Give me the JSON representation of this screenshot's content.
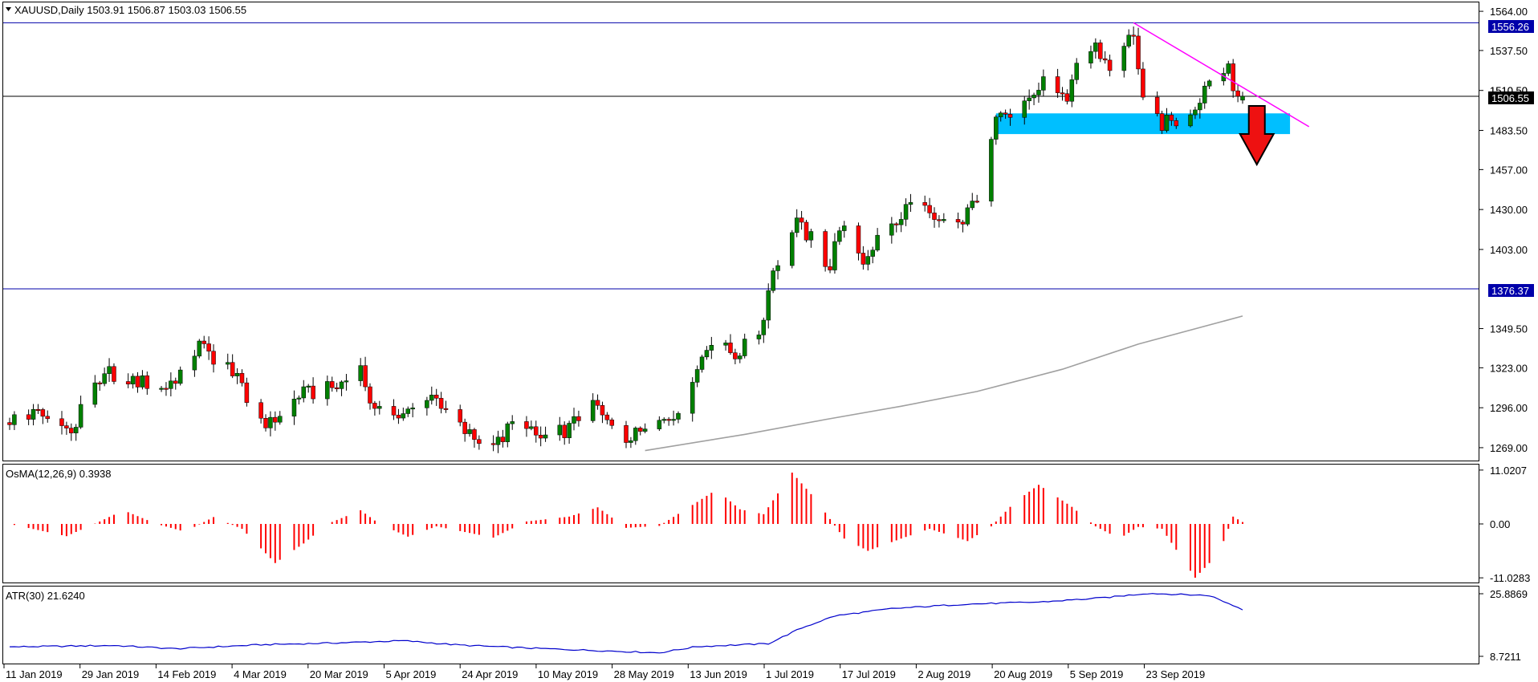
{
  "header": {
    "symbol_line": "XAUUSD,Daily  1503.91 1506.87 1503.03 1506.55",
    "osma_label": "OsMA(12,26,9) 0.3938",
    "atr_label": "ATR(30) 21.6240"
  },
  "price_axis": {
    "ticks": [
      "1564.00",
      "1537.50",
      "1510.50",
      "1483.50",
      "1457.00",
      "1430.00",
      "1403.00",
      "1376.37",
      "1349.50",
      "1323.00",
      "1296.00",
      "1269.00"
    ],
    "current_price": "1506.55",
    "resistance_label": "1556.26",
    "support_label": "1376.37",
    "hidden_label": "1510.50"
  },
  "osma_axis": {
    "ticks": [
      "11.0207",
      "0.00",
      "-11.0283"
    ]
  },
  "atr_axis": {
    "ticks": [
      "25.8869",
      "8.7211"
    ]
  },
  "time_axis": {
    "labels": [
      "11 Jan 2019",
      "29 Jan 2019",
      "14 Feb 2019",
      "4 Mar 2019",
      "20 Mar 2019",
      "5 Apr 2019",
      "24 Apr 2019",
      "10 May 2019",
      "28 May 2019",
      "13 Jun 2019",
      "1 Jul 2019",
      "17 Jul 2019",
      "2 Aug 2019",
      "20 Aug 2019",
      "5 Sep 2019",
      "23 Sep 2019"
    ]
  },
  "colors": {
    "bull": "#008000",
    "bear": "#ff0000",
    "osma": "#ff0000",
    "atr": "#0000cc",
    "ma": "#a0a0a0",
    "trendline": "#ff00ff",
    "zone": "#00bfff",
    "hline": "#0000aa",
    "arrow": "#ee1111"
  },
  "chart_data": {
    "type": "candlestick",
    "symbol": "XAUUSD",
    "timeframe": "Daily",
    "last_bar": {
      "open": 1503.91,
      "high": 1506.87,
      "low": 1503.03,
      "close": 1506.55
    },
    "date_range": [
      "2019-01-10",
      "2019-09-27"
    ],
    "price_range": [
      1255,
      1570
    ],
    "close_path": [
      {
        "date": "2019-01-10",
        "close": 1288
      },
      {
        "date": "2019-01-16",
        "close": 1292
      },
      {
        "date": "2019-01-22",
        "close": 1281
      },
      {
        "date": "2019-01-24",
        "close": 1279
      },
      {
        "date": "2019-01-25",
        "close": 1300
      },
      {
        "date": "2019-01-29",
        "close": 1310
      },
      {
        "date": "2019-01-31",
        "close": 1320
      },
      {
        "date": "2019-02-04",
        "close": 1315
      },
      {
        "date": "2019-02-12",
        "close": 1310
      },
      {
        "date": "2019-02-15",
        "close": 1320
      },
      {
        "date": "2019-02-19",
        "close": 1338
      },
      {
        "date": "2019-02-22",
        "close": 1330
      },
      {
        "date": "2019-02-27",
        "close": 1320
      },
      {
        "date": "2019-03-01",
        "close": 1295
      },
      {
        "date": "2019-03-06",
        "close": 1285
      },
      {
        "date": "2019-03-08",
        "close": 1292
      },
      {
        "date": "2019-03-12",
        "close": 1305
      },
      {
        "date": "2019-03-15",
        "close": 1306
      },
      {
        "date": "2019-03-20",
        "close": 1310
      },
      {
        "date": "2019-03-25",
        "close": 1322
      },
      {
        "date": "2019-03-28",
        "close": 1292
      },
      {
        "date": "2019-04-03",
        "close": 1290
      },
      {
        "date": "2019-04-10",
        "close": 1306
      },
      {
        "date": "2019-04-12",
        "close": 1290
      },
      {
        "date": "2019-04-18",
        "close": 1275
      },
      {
        "date": "2019-04-23",
        "close": 1272
      },
      {
        "date": "2019-04-26",
        "close": 1285
      },
      {
        "date": "2019-05-02",
        "close": 1275
      },
      {
        "date": "2019-05-08",
        "close": 1282
      },
      {
        "date": "2019-05-13",
        "close": 1300
      },
      {
        "date": "2019-05-16",
        "close": 1285
      },
      {
        "date": "2019-05-21",
        "close": 1275
      },
      {
        "date": "2019-05-24",
        "close": 1284
      },
      {
        "date": "2019-05-30",
        "close": 1290
      },
      {
        "date": "2019-06-04",
        "close": 1325
      },
      {
        "date": "2019-06-07",
        "close": 1340
      },
      {
        "date": "2019-06-12",
        "close": 1332
      },
      {
        "date": "2019-06-17",
        "close": 1345
      },
      {
        "date": "2019-06-20",
        "close": 1390
      },
      {
        "date": "2019-06-25",
        "close": 1420
      },
      {
        "date": "2019-06-28",
        "close": 1410
      },
      {
        "date": "2019-07-02",
        "close": 1390
      },
      {
        "date": "2019-07-04",
        "close": 1420
      },
      {
        "date": "2019-07-09",
        "close": 1396
      },
      {
        "date": "2019-07-12",
        "close": 1410
      },
      {
        "date": "2019-07-17",
        "close": 1422
      },
      {
        "date": "2019-07-19",
        "close": 1440
      },
      {
        "date": "2019-07-24",
        "close": 1420
      },
      {
        "date": "2019-07-30",
        "close": 1420
      },
      {
        "date": "2019-08-02",
        "close": 1440
      },
      {
        "date": "2019-08-07",
        "close": 1500
      },
      {
        "date": "2019-08-09",
        "close": 1497
      },
      {
        "date": "2019-08-13",
        "close": 1505
      },
      {
        "date": "2019-08-16",
        "close": 1515
      },
      {
        "date": "2019-08-21",
        "close": 1500
      },
      {
        "date": "2019-08-23",
        "close": 1528
      },
      {
        "date": "2019-08-27",
        "close": 1540
      },
      {
        "date": "2019-08-30",
        "close": 1525
      },
      {
        "date": "2019-09-04",
        "close": 1550
      },
      {
        "date": "2019-09-06",
        "close": 1505
      },
      {
        "date": "2019-09-10",
        "close": 1488
      },
      {
        "date": "2019-09-13",
        "close": 1490
      },
      {
        "date": "2019-09-17",
        "close": 1500
      },
      {
        "date": "2019-09-20",
        "close": 1520
      },
      {
        "date": "2019-09-24",
        "close": 1530
      },
      {
        "date": "2019-09-25",
        "close": 1505
      },
      {
        "date": "2019-09-27",
        "close": 1506.55
      }
    ],
    "horizontal_lines": [
      1556.26,
      1506.55,
      1376.37
    ],
    "trendline": {
      "from": {
        "date": "2019-09-04",
        "price": 1556.26
      },
      "to": {
        "date": "2019-10-11",
        "price": 1486
      }
    },
    "support_zone": {
      "from_date": "2019-08-06",
      "to_date": "2019-10-07",
      "low": 1481,
      "high": 1495
    },
    "moving_average": [
      {
        "date": "2019-05-24",
        "value": 1267
      },
      {
        "date": "2019-06-14",
        "value": 1278
      },
      {
        "date": "2019-07-01",
        "value": 1288
      },
      {
        "date": "2019-07-17",
        "value": 1297
      },
      {
        "date": "2019-08-02",
        "value": 1307
      },
      {
        "date": "2019-08-20",
        "value": 1322
      },
      {
        "date": "2019-09-05",
        "value": 1339
      },
      {
        "date": "2019-09-27",
        "value": 1358
      }
    ],
    "annotation": "red arrow pointing down below support zone",
    "osma": {
      "range": [
        -11.0283,
        11.0207
      ],
      "path": [
        {
          "date": "2019-01-10",
          "value": 0.0
        },
        {
          "date": "2019-01-22",
          "value": -2.5
        },
        {
          "date": "2019-01-29",
          "value": 0.5
        },
        {
          "date": "2019-02-03",
          "value": 2.8
        },
        {
          "date": "2019-02-10",
          "value": 0.0
        },
        {
          "date": "2019-02-16",
          "value": -1.6
        },
        {
          "date": "2019-02-22",
          "value": 1.4
        },
        {
          "date": "2019-02-28",
          "value": -1.0
        },
        {
          "date": "2019-03-07",
          "value": -8.0
        },
        {
          "date": "2019-03-13",
          "value": -4.0
        },
        {
          "date": "2019-03-18",
          "value": 0.0
        },
        {
          "date": "2019-03-25",
          "value": 2.8
        },
        {
          "date": "2019-03-29",
          "value": 0.0
        },
        {
          "date": "2019-04-04",
          "value": -2.6
        },
        {
          "date": "2019-04-10",
          "value": -0.5
        },
        {
          "date": "2019-04-22",
          "value": -2.8
        },
        {
          "date": "2019-04-29",
          "value": 0.5
        },
        {
          "date": "2019-05-08",
          "value": 1.5
        },
        {
          "date": "2019-05-14",
          "value": 3.4
        },
        {
          "date": "2019-05-20",
          "value": -0.8
        },
        {
          "date": "2019-05-27",
          "value": -0.4
        },
        {
          "date": "2019-06-04",
          "value": 4.5
        },
        {
          "date": "2019-06-08",
          "value": 7.0
        },
        {
          "date": "2019-06-13",
          "value": 3.0
        },
        {
          "date": "2019-06-18",
          "value": 2.0
        },
        {
          "date": "2019-06-24",
          "value": 10.5
        },
        {
          "date": "2019-06-29",
          "value": 5.0
        },
        {
          "date": "2019-07-05",
          "value": -3.0
        },
        {
          "date": "2019-07-10",
          "value": -5.5
        },
        {
          "date": "2019-07-17",
          "value": -3.0
        },
        {
          "date": "2019-07-23",
          "value": -1.0
        },
        {
          "date": "2019-07-31",
          "value": -3.5
        },
        {
          "date": "2019-08-05",
          "value": -0.5
        },
        {
          "date": "2019-08-10",
          "value": 4.5
        },
        {
          "date": "2019-08-15",
          "value": 8.0
        },
        {
          "date": "2019-08-22",
          "value": 3.5
        },
        {
          "date": "2019-08-27",
          "value": -0.5
        },
        {
          "date": "2019-09-01",
          "value": -3.0
        },
        {
          "date": "2019-09-05",
          "value": -0.6
        },
        {
          "date": "2019-09-10",
          "value": -1.0
        },
        {
          "date": "2019-09-17",
          "value": -11.0
        },
        {
          "date": "2019-09-22",
          "value": -6.0
        },
        {
          "date": "2019-09-25",
          "value": 1.5
        },
        {
          "date": "2019-09-27",
          "value": 0.39
        }
      ]
    },
    "atr": {
      "range": [
        8.7211,
        25.8869
      ],
      "path": [
        {
          "date": "2019-01-10",
          "value": 11.3
        },
        {
          "date": "2019-02-01",
          "value": 11.7
        },
        {
          "date": "2019-02-14",
          "value": 10.8
        },
        {
          "date": "2019-03-04",
          "value": 11.9
        },
        {
          "date": "2019-03-20",
          "value": 12.4
        },
        {
          "date": "2019-04-03",
          "value": 13.0
        },
        {
          "date": "2019-04-15",
          "value": 11.8
        },
        {
          "date": "2019-05-01",
          "value": 10.9
        },
        {
          "date": "2019-05-27",
          "value": 9.7
        },
        {
          "date": "2019-06-04",
          "value": 11.4
        },
        {
          "date": "2019-06-19",
          "value": 12.2
        },
        {
          "date": "2019-06-26",
          "value": 16.5
        },
        {
          "date": "2019-07-03",
          "value": 19.8
        },
        {
          "date": "2019-07-15",
          "value": 21.8
        },
        {
          "date": "2019-07-30",
          "value": 23.0
        },
        {
          "date": "2019-08-15",
          "value": 23.6
        },
        {
          "date": "2019-08-28",
          "value": 24.7
        },
        {
          "date": "2019-09-07",
          "value": 26.0
        },
        {
          "date": "2019-09-20",
          "value": 25.4
        },
        {
          "date": "2019-09-27",
          "value": 21.6
        }
      ]
    }
  }
}
